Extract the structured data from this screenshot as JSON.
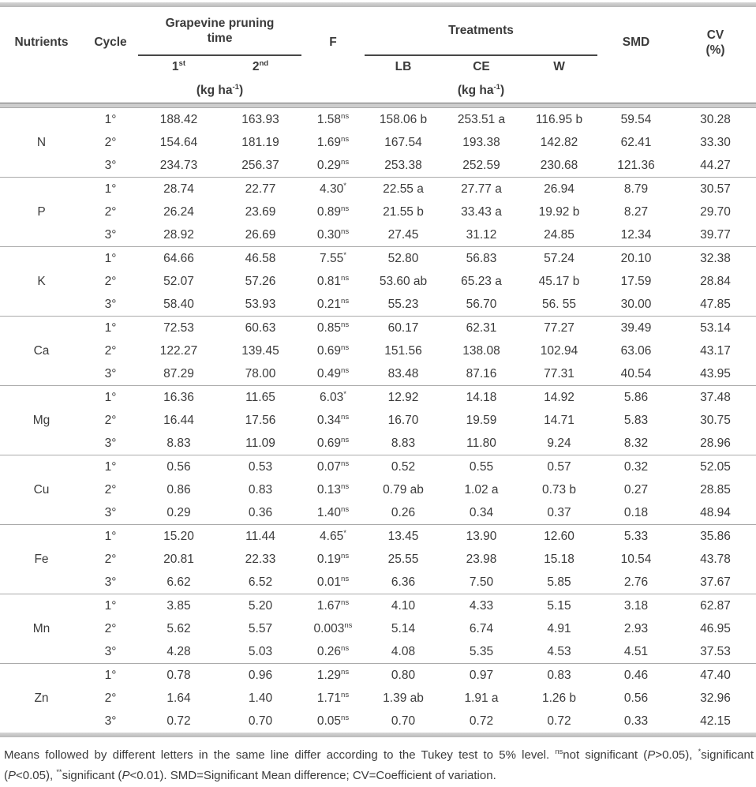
{
  "colors": {
    "text": "#3b3b3b",
    "thick-bar": "#b9b9b9",
    "rule-light": "#ababab",
    "rule-dark": "#6e6e6e",
    "group-underline": "#474747"
  },
  "table": {
    "header": {
      "nutrients": "Nutrients",
      "cycle": "Cycle",
      "pruning_group": "Grapevine pruning\ntime",
      "pruning_cols": [
        {
          "base": "1",
          "sup": "st"
        },
        {
          "base": "2",
          "sup": "nd"
        }
      ],
      "f": "F",
      "treatments_group": "Treatments",
      "treatment_cols": [
        "LB",
        "CE",
        "W"
      ],
      "smd": "SMD",
      "cv_line1": "CV",
      "cv_line2": "(%)",
      "unit_pre": "(kg ha",
      "unit_sup": "-1",
      "unit_post": ")"
    },
    "groups": [
      {
        "nutrient": "N",
        "rows": [
          {
            "cycle": "1°",
            "pt1": "188.42",
            "pt2": "163.93",
            "f": "1.58",
            "f_mark": "ns",
            "lb": "158.06 b",
            "ce": "253.51 a",
            "w": "116.95 b",
            "smd": "59.54",
            "cv": "30.28"
          },
          {
            "cycle": "2°",
            "pt1": "154.64",
            "pt2": "181.19",
            "f": "1.69",
            "f_mark": "ns",
            "lb": "167.54",
            "ce": "193.38",
            "w": "142.82",
            "smd": "62.41",
            "cv": "33.30"
          },
          {
            "cycle": "3°",
            "pt1": "234.73",
            "pt2": "256.37",
            "f": "0.29",
            "f_mark": "ns",
            "lb": "253.38",
            "ce": "252.59",
            "w": "230.68",
            "smd": "121.36",
            "cv": "44.27"
          }
        ]
      },
      {
        "nutrient": "P",
        "rows": [
          {
            "cycle": "1°",
            "pt1": "28.74",
            "pt2": "22.77",
            "f": "4.30",
            "f_mark": "*",
            "lb": "22.55 a",
            "ce": "27.77 a",
            "w": "26.94",
            "smd": "8.79",
            "cv": "30.57"
          },
          {
            "cycle": "2°",
            "pt1": "26.24",
            "pt2": "23.69",
            "f": "0.89",
            "f_mark": "ns",
            "lb": "21.55 b",
            "ce": "33.43 a",
            "w": "19.92 b",
            "smd": "8.27",
            "cv": "29.70"
          },
          {
            "cycle": "3°",
            "pt1": "28.92",
            "pt2": "26.69",
            "f": "0.30",
            "f_mark": "ns",
            "lb": "27.45",
            "ce": "31.12",
            "w": "24.85",
            "smd": "12.34",
            "cv": "39.77"
          }
        ]
      },
      {
        "nutrient": "K",
        "rows": [
          {
            "cycle": "1°",
            "pt1": "64.66",
            "pt2": "46.58",
            "f": "7.55",
            "f_mark": "*",
            "lb": "52.80",
            "ce": "56.83",
            "w": "57.24",
            "smd": "20.10",
            "cv": "32.38"
          },
          {
            "cycle": "2°",
            "pt1": "52.07",
            "pt2": "57.26",
            "f": "0.81",
            "f_mark": "ns",
            "lb": "53.60 ab",
            "ce": "65.23 a",
            "w": "45.17 b",
            "smd": "17.59",
            "cv": "28.84"
          },
          {
            "cycle": "3°",
            "pt1": "58.40",
            "pt2": "53.93",
            "f": "0.21",
            "f_mark": "ns",
            "lb": "55.23",
            "ce": "56.70",
            "w": "56. 55",
            "smd": "30.00",
            "cv": "47.85"
          }
        ]
      },
      {
        "nutrient": "Ca",
        "rows": [
          {
            "cycle": "1°",
            "pt1": "72.53",
            "pt2": "60.63",
            "f": "0.85",
            "f_mark": "ns",
            "lb": "60.17",
            "ce": "62.31",
            "w": "77.27",
            "smd": "39.49",
            "cv": "53.14"
          },
          {
            "cycle": "2°",
            "pt1": "122.27",
            "pt2": "139.45",
            "f": "0.69",
            "f_mark": "ns",
            "lb": "151.56",
            "ce": "138.08",
            "w": "102.94",
            "smd": "63.06",
            "cv": "43.17"
          },
          {
            "cycle": "3°",
            "pt1": "87.29",
            "pt2": "78.00",
            "f": "0.49",
            "f_mark": "ns",
            "lb": "83.48",
            "ce": "87.16",
            "w": "77.31",
            "smd": "40.54",
            "cv": "43.95"
          }
        ]
      },
      {
        "nutrient": "Mg",
        "rows": [
          {
            "cycle": "1°",
            "pt1": "16.36",
            "pt2": "11.65",
            "f": "6.03",
            "f_mark": "*",
            "lb": "12.92",
            "ce": "14.18",
            "w": "14.92",
            "smd": "5.86",
            "cv": "37.48"
          },
          {
            "cycle": "2°",
            "pt1": "16.44",
            "pt2": "17.56",
            "f": "0.34",
            "f_mark": "ns",
            "lb": "16.70",
            "ce": "19.59",
            "w": "14.71",
            "smd": "5.83",
            "cv": "30.75"
          },
          {
            "cycle": "3°",
            "pt1": "8.83",
            "pt2": "11.09",
            "f": "0.69",
            "f_mark": "ns",
            "lb": "8.83",
            "ce": "11.80",
            "w": "9.24",
            "smd": "8.32",
            "cv": "28.96"
          }
        ]
      },
      {
        "nutrient": "Cu",
        "rows": [
          {
            "cycle": "1°",
            "pt1": "0.56",
            "pt2": "0.53",
            "f": "0.07",
            "f_mark": "ns",
            "lb": "0.52",
            "ce": "0.55",
            "w": "0.57",
            "smd": "0.32",
            "cv": "52.05"
          },
          {
            "cycle": "2°",
            "pt1": "0.86",
            "pt2": "0.83",
            "f": "0.13",
            "f_mark": "ns",
            "lb": "0.79 ab",
            "ce": "1.02 a",
            "w": "0.73 b",
            "smd": "0.27",
            "cv": "28.85"
          },
          {
            "cycle": "3°",
            "pt1": "0.29",
            "pt2": "0.36",
            "f": "1.40",
            "f_mark": "ns",
            "lb": "0.26",
            "ce": "0.34",
            "w": "0.37",
            "smd": "0.18",
            "cv": "48.94"
          }
        ]
      },
      {
        "nutrient": "Fe",
        "rows": [
          {
            "cycle": "1°",
            "pt1": "15.20",
            "pt2": "11.44",
            "f": "4.65",
            "f_mark": "*",
            "lb": "13.45",
            "ce": "13.90",
            "w": "12.60",
            "smd": "5.33",
            "cv": "35.86"
          },
          {
            "cycle": "2°",
            "pt1": "20.81",
            "pt2": "22.33",
            "f": "0.19",
            "f_mark": "ns",
            "lb": "25.55",
            "ce": "23.98",
            "w": "15.18",
            "smd": "10.54",
            "cv": "43.78"
          },
          {
            "cycle": "3°",
            "pt1": "6.62",
            "pt2": "6.52",
            "f": "0.01",
            "f_mark": "ns",
            "lb": "6.36",
            "ce": "7.50",
            "w": "5.85",
            "smd": "2.76",
            "cv": "37.67"
          }
        ]
      },
      {
        "nutrient": "Mn",
        "rows": [
          {
            "cycle": "1°",
            "pt1": "3.85",
            "pt2": "5.20",
            "f": "1.67",
            "f_mark": "ns",
            "lb": "4.10",
            "ce": "4.33",
            "w": "5.15",
            "smd": "3.18",
            "cv": "62.87"
          },
          {
            "cycle": "2°",
            "pt1": "5.62",
            "pt2": "5.57",
            "f": "0.003",
            "f_mark": "ns",
            "lb": "5.14",
            "ce": "6.74",
            "w": "4.91",
            "smd": "2.93",
            "cv": "46.95"
          },
          {
            "cycle": "3°",
            "pt1": "4.28",
            "pt2": "5.03",
            "f": "0.26",
            "f_mark": "ns",
            "lb": "4.08",
            "ce": "5.35",
            "w": "4.53",
            "smd": "4.51",
            "cv": "37.53"
          }
        ]
      },
      {
        "nutrient": "Zn",
        "rows": [
          {
            "cycle": "1°",
            "pt1": "0.78",
            "pt2": "0.96",
            "f": "1.29",
            "f_mark": "ns",
            "lb": "0.80",
            "ce": "0.97",
            "w": "0.83",
            "smd": "0.46",
            "cv": "47.40"
          },
          {
            "cycle": "2°",
            "pt1": "1.64",
            "pt2": "1.40",
            "f": "1.71",
            "f_mark": "ns",
            "lb": "1.39 ab",
            "ce": "1.91 a",
            "w": "1.26 b",
            "smd": "0.56",
            "cv": "32.96"
          },
          {
            "cycle": "3°",
            "pt1": "0.72",
            "pt2": "0.70",
            "f": "0.05",
            "f_mark": "ns",
            "lb": "0.70",
            "ce": "0.72",
            "w": "0.72",
            "smd": "0.33",
            "cv": "42.15"
          }
        ]
      }
    ]
  },
  "footnote": {
    "segments": [
      {
        "t": "Means followed by different letters in the same line differ according to the Tukey test to 5% level. "
      },
      {
        "t": "ns",
        "sup": true
      },
      {
        "t": "not significant ("
      },
      {
        "t": "P",
        "i": true
      },
      {
        "t": ">0.05), "
      },
      {
        "t": "*",
        "sup": true
      },
      {
        "t": "significant ("
      },
      {
        "t": "P",
        "i": true
      },
      {
        "t": "<0.05), "
      },
      {
        "t": "**",
        "sup": true
      },
      {
        "t": "significant ("
      },
      {
        "t": "P",
        "i": true
      },
      {
        "t": "<0.01). SMD=Significant Mean difference; CV=Coefficient of variation."
      }
    ]
  }
}
